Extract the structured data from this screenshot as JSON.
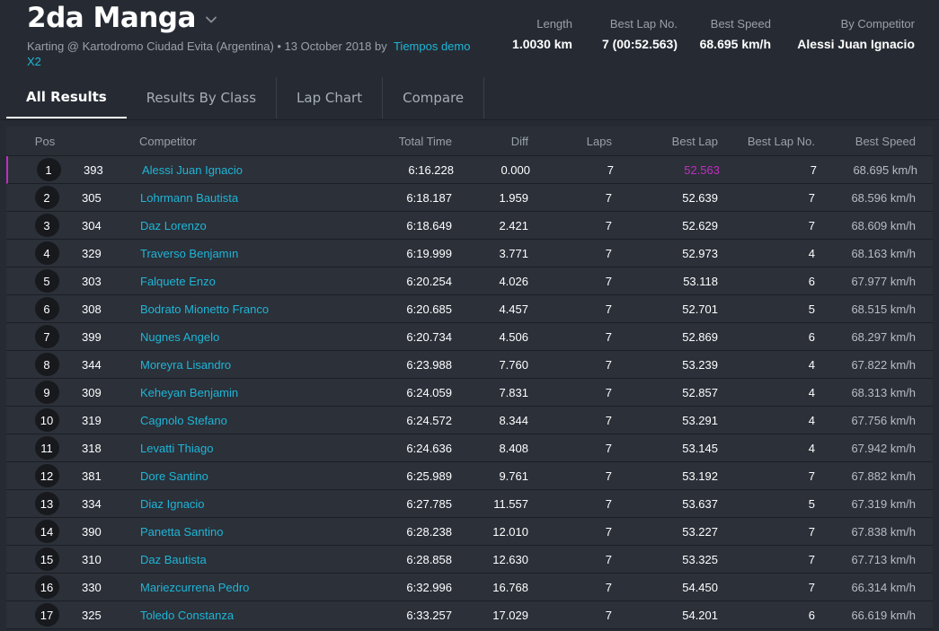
{
  "header": {
    "title": "2da Manga",
    "subtitle": "Karting @ Kartodromo Ciudad Evita (Argentina) • 13 October 2018 by",
    "author_link": "Tiempos demo X2",
    "stats": [
      {
        "label": "Length",
        "value": "1.0030 km"
      },
      {
        "label": "Best Lap No.",
        "value": "7 (00:52.563)"
      },
      {
        "label": "Best Speed",
        "value": "68.695 km/h"
      },
      {
        "label": "By Competitor",
        "value": "Alessi Juan Ignacio"
      }
    ]
  },
  "tabs": [
    {
      "label": "All Results",
      "active": true
    },
    {
      "label": "Results By Class",
      "active": false
    },
    {
      "label": "Lap Chart",
      "active": false
    },
    {
      "label": "Compare",
      "active": false
    }
  ],
  "colors": {
    "accent_link": "#1fb5d6",
    "best_lap": "#c02fbf",
    "background": "#262b33"
  },
  "table": {
    "columns": {
      "pos": "Pos",
      "competitor": "Competitor",
      "total_time": "Total Time",
      "diff": "Diff",
      "laps": "Laps",
      "best_lap": "Best Lap",
      "best_lap_no": "Best Lap No.",
      "best_speed": "Best Speed"
    },
    "rows": [
      {
        "pos": "1",
        "no": "393",
        "competitor": "Alessi Juan Ignacio",
        "total": "6:16.228",
        "diff": "0.000",
        "laps": "7",
        "best": "52.563",
        "best_no": "7",
        "speed": "68.695 km/h"
      },
      {
        "pos": "2",
        "no": "305",
        "competitor": "Lohrmann Bautista",
        "total": "6:18.187",
        "diff": "1.959",
        "laps": "7",
        "best": "52.639",
        "best_no": "7",
        "speed": "68.596 km/h"
      },
      {
        "pos": "3",
        "no": "304",
        "competitor": "Daz Lorenzo",
        "total": "6:18.649",
        "diff": "2.421",
        "laps": "7",
        "best": "52.629",
        "best_no": "7",
        "speed": "68.609 km/h"
      },
      {
        "pos": "4",
        "no": "329",
        "competitor": "Traverso Benjamın",
        "total": "6:19.999",
        "diff": "3.771",
        "laps": "7",
        "best": "52.973",
        "best_no": "4",
        "speed": "68.163 km/h"
      },
      {
        "pos": "5",
        "no": "303",
        "competitor": "Falquete Enzo",
        "total": "6:20.254",
        "diff": "4.026",
        "laps": "7",
        "best": "53.118",
        "best_no": "6",
        "speed": "67.977 km/h"
      },
      {
        "pos": "6",
        "no": "308",
        "competitor": "Bodrato Mionetto Franco",
        "total": "6:20.685",
        "diff": "4.457",
        "laps": "7",
        "best": "52.701",
        "best_no": "5",
        "speed": "68.515 km/h"
      },
      {
        "pos": "7",
        "no": "399",
        "competitor": "Nugnes Angelo",
        "total": "6:20.734",
        "diff": "4.506",
        "laps": "7",
        "best": "52.869",
        "best_no": "6",
        "speed": "68.297 km/h"
      },
      {
        "pos": "8",
        "no": "344",
        "competitor": "Moreyra Lisandro",
        "total": "6:23.988",
        "diff": "7.760",
        "laps": "7",
        "best": "53.239",
        "best_no": "4",
        "speed": "67.822 km/h"
      },
      {
        "pos": "9",
        "no": "309",
        "competitor": "Keheyan Benjamin",
        "total": "6:24.059",
        "diff": "7.831",
        "laps": "7",
        "best": "52.857",
        "best_no": "4",
        "speed": "68.313 km/h"
      },
      {
        "pos": "10",
        "no": "319",
        "competitor": "Cagnolo Stefano",
        "total": "6:24.572",
        "diff": "8.344",
        "laps": "7",
        "best": "53.291",
        "best_no": "4",
        "speed": "67.756 km/h"
      },
      {
        "pos": "11",
        "no": "318",
        "competitor": "Levatti Thiago",
        "total": "6:24.636",
        "diff": "8.408",
        "laps": "7",
        "best": "53.145",
        "best_no": "4",
        "speed": "67.942 km/h"
      },
      {
        "pos": "12",
        "no": "381",
        "competitor": "Dore Santino",
        "total": "6:25.989",
        "diff": "9.761",
        "laps": "7",
        "best": "53.192",
        "best_no": "7",
        "speed": "67.882 km/h"
      },
      {
        "pos": "13",
        "no": "334",
        "competitor": "Diaz Ignacio",
        "total": "6:27.785",
        "diff": "11.557",
        "laps": "7",
        "best": "53.637",
        "best_no": "5",
        "speed": "67.319 km/h"
      },
      {
        "pos": "14",
        "no": "390",
        "competitor": "Panetta Santino",
        "total": "6:28.238",
        "diff": "12.010",
        "laps": "7",
        "best": "53.227",
        "best_no": "7",
        "speed": "67.838 km/h"
      },
      {
        "pos": "15",
        "no": "310",
        "competitor": "Daz Bautista",
        "total": "6:28.858",
        "diff": "12.630",
        "laps": "7",
        "best": "53.325",
        "best_no": "7",
        "speed": "67.713 km/h"
      },
      {
        "pos": "16",
        "no": "330",
        "competitor": "Mariezcurrena Pedro",
        "total": "6:32.996",
        "diff": "16.768",
        "laps": "7",
        "best": "54.450",
        "best_no": "7",
        "speed": "66.314 km/h"
      },
      {
        "pos": "17",
        "no": "325",
        "competitor": "Toledo Constanza",
        "total": "6:33.257",
        "diff": "17.029",
        "laps": "7",
        "best": "54.201",
        "best_no": "6",
        "speed": "66.619 km/h"
      }
    ]
  }
}
